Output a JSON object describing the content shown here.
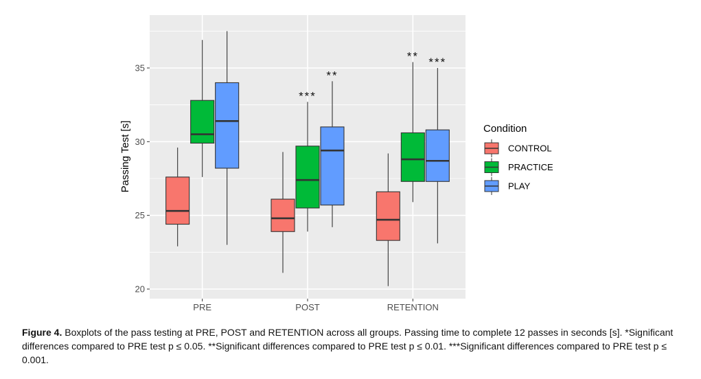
{
  "chart_data": {
    "type": "boxplot",
    "ylabel": "Passing Test [s]",
    "xlabel": "",
    "ylim": [
      19.5,
      38.5
    ],
    "yticks": [
      20,
      25,
      30,
      35
    ],
    "grid": true,
    "categories": [
      "PRE",
      "POST",
      "RETENTION"
    ],
    "legend": {
      "title": "Condition",
      "position": "right",
      "entries": [
        "CONTROL",
        "PRACTICE",
        "PLAY"
      ]
    },
    "colors": {
      "CONTROL": "#f8766d",
      "PRACTICE": "#00ba38",
      "PLAY": "#619cff"
    },
    "series": [
      {
        "name": "CONTROL",
        "boxes": [
          {
            "min": 22.9,
            "q1": 24.4,
            "median": 25.3,
            "q3": 27.6,
            "max": 29.6
          },
          {
            "min": 21.1,
            "q1": 23.9,
            "median": 24.8,
            "q3": 26.1,
            "max": 29.3
          },
          {
            "min": 20.2,
            "q1": 23.3,
            "median": 24.7,
            "q3": 26.6,
            "max": 29.2
          }
        ]
      },
      {
        "name": "PRACTICE",
        "boxes": [
          {
            "min": 27.6,
            "q1": 29.9,
            "median": 30.5,
            "q3": 32.8,
            "max": 36.9
          },
          {
            "min": 23.9,
            "q1": 25.5,
            "median": 27.4,
            "q3": 29.7,
            "max": 32.7
          },
          {
            "min": 25.9,
            "q1": 27.3,
            "median": 28.8,
            "q3": 30.6,
            "max": 35.4
          }
        ]
      },
      {
        "name": "PLAY",
        "boxes": [
          {
            "min": 23.0,
            "q1": 28.2,
            "median": 31.4,
            "q3": 34.0,
            "max": 37.5
          },
          {
            "min": 24.2,
            "q1": 25.7,
            "median": 29.4,
            "q3": 31.0,
            "max": 34.1
          },
          {
            "min": 23.1,
            "q1": 27.3,
            "median": 28.7,
            "q3": 30.8,
            "max": 35.0
          }
        ]
      }
    ],
    "annotations": [
      {
        "category": "POST",
        "series": "PRACTICE",
        "text": "***"
      },
      {
        "category": "POST",
        "series": "PLAY",
        "text": "**"
      },
      {
        "category": "RETENTION",
        "series": "PRACTICE",
        "text": "**"
      },
      {
        "category": "RETENTION",
        "series": "PLAY",
        "text": "***"
      }
    ]
  },
  "caption": {
    "label": "Figure 4.",
    "text": " Boxplots of the pass testing at PRE, POST and RETENTION across all groups. Passing time to complete 12 passes in seconds [s]. *Significant differences compared to PRE test p ≤ 0.05. **Significant differences compared to PRE test p ≤ 0.01. ***Significant differences compared to PRE test p ≤ 0.001."
  }
}
